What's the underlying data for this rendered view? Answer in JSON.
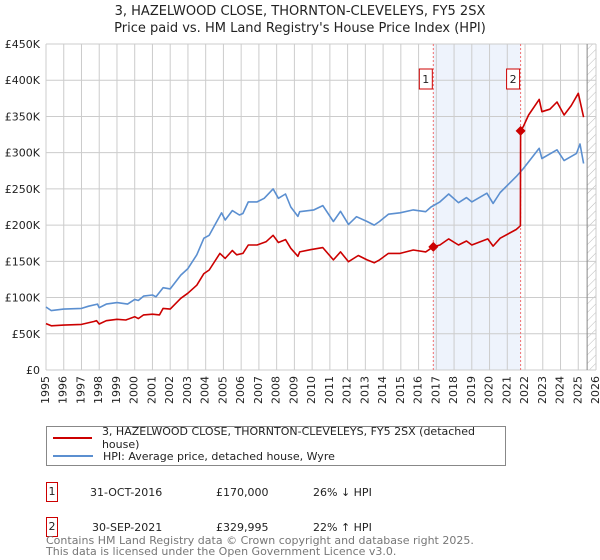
{
  "title_line1": "3, HAZELWOOD CLOSE, THORNTON-CLEVELEYS, FY5 2SX",
  "title_line2": "Price paid vs. HM Land Registry's House Price Index (HPI)",
  "chart_data": {
    "type": "line",
    "title": "3, HAZELWOOD CLOSE, THORNTON-CLEVELEYS, FY5 2SX — Price paid vs. HM Land Registry's House Price Index (HPI)",
    "xlim": [
      1995,
      2026
    ],
    "ylim": [
      0,
      450000
    ],
    "y_ticks": [
      {
        "v": 0,
        "label": "£0"
      },
      {
        "v": 50000,
        "label": "£50K"
      },
      {
        "v": 100000,
        "label": "£100K"
      },
      {
        "v": 150000,
        "label": "£150K"
      },
      {
        "v": 200000,
        "label": "£200K"
      },
      {
        "v": 250000,
        "label": "£250K"
      },
      {
        "v": 300000,
        "label": "£300K"
      },
      {
        "v": 350000,
        "label": "£350K"
      },
      {
        "v": 400000,
        "label": "£400K"
      },
      {
        "v": 450000,
        "label": "£450K"
      }
    ],
    "x_ticks": [
      "1995",
      "1996",
      "1997",
      "1998",
      "1999",
      "2000",
      "2001",
      "2002",
      "2003",
      "2004",
      "2005",
      "2006",
      "2007",
      "2008",
      "2009",
      "2010",
      "2011",
      "2012",
      "2013",
      "2014",
      "2015",
      "2016",
      "2017",
      "2018",
      "2019",
      "2020",
      "2021",
      "2022",
      "2023",
      "2024",
      "2025",
      "2026"
    ],
    "grid": true,
    "shaded_span": [
      2016.83,
      2021.75
    ],
    "hatched_from": 2025.5,
    "series": [
      {
        "name": "3, HAZELWOOD CLOSE, THORNTON-CLEVELEYS, FY5 2SX (detached house)",
        "color": "#cc0000",
        "points": [
          [
            1995,
            64
          ],
          [
            1995.3,
            61
          ],
          [
            1996,
            62
          ],
          [
            1997,
            63
          ],
          [
            1997.7,
            67
          ],
          [
            1997.85,
            68
          ],
          [
            1998,
            63.5
          ],
          [
            1998.4,
            68
          ],
          [
            1999,
            70
          ],
          [
            1999.5,
            69
          ],
          [
            2000,
            73.6
          ],
          [
            2000.2,
            71
          ],
          [
            2000.5,
            76
          ],
          [
            2001,
            77
          ],
          [
            2001.4,
            76
          ],
          [
            2001.6,
            85
          ],
          [
            2002,
            84
          ],
          [
            2002.6,
            99
          ],
          [
            2003,
            106
          ],
          [
            2003.5,
            117
          ],
          [
            2003.9,
            133
          ],
          [
            2004.2,
            138
          ],
          [
            2004.8,
            161
          ],
          [
            2005.1,
            154
          ],
          [
            2005.5,
            165
          ],
          [
            2005.75,
            159
          ],
          [
            2006.1,
            161
          ],
          [
            2006.4,
            172.5
          ],
          [
            2006.9,
            172.5
          ],
          [
            2007.4,
            177
          ],
          [
            2007.8,
            186
          ],
          [
            2008.1,
            176
          ],
          [
            2008.5,
            180
          ],
          [
            2008.8,
            168
          ],
          [
            2009.2,
            157
          ],
          [
            2009.3,
            163
          ],
          [
            2009.9,
            166
          ],
          [
            2010.6,
            169
          ],
          [
            2011.2,
            152
          ],
          [
            2011.6,
            163
          ],
          [
            2012.05,
            149.5
          ],
          [
            2012.6,
            158
          ],
          [
            2013.1,
            152
          ],
          [
            2013.5,
            148
          ],
          [
            2013.8,
            152
          ],
          [
            2014.3,
            161
          ],
          [
            2014.96,
            161
          ],
          [
            2015.7,
            165.6
          ],
          [
            2016.4,
            163
          ],
          [
            2016.83,
            170
          ],
          [
            2017.2,
            172.5
          ],
          [
            2017.7,
            181
          ],
          [
            2018.25,
            172.5
          ],
          [
            2018.7,
            178
          ],
          [
            2019.0,
            172.5
          ],
          [
            2019.9,
            181
          ],
          [
            2020.2,
            171
          ],
          [
            2020.6,
            182
          ],
          [
            2021.5,
            194
          ],
          [
            2021.74,
            199
          ],
          [
            2021.75,
            330
          ],
          [
            2021.9,
            336
          ],
          [
            2022.2,
            352
          ],
          [
            2022.8,
            373.5
          ],
          [
            2022.95,
            356.5
          ],
          [
            2023.4,
            360
          ],
          [
            2023.8,
            370
          ],
          [
            2024.2,
            352
          ],
          [
            2024.6,
            365
          ],
          [
            2025.0,
            382
          ],
          [
            2025.3,
            349
          ]
        ]
      },
      {
        "name": "HPI: Average price, detached house, Wyre",
        "color": "#5b8fd0",
        "points": [
          [
            1995,
            87
          ],
          [
            1995.3,
            82
          ],
          [
            1996,
            84
          ],
          [
            1997,
            85
          ],
          [
            1997.4,
            88
          ],
          [
            1997.9,
            91
          ],
          [
            1998,
            86
          ],
          [
            1998.4,
            91
          ],
          [
            1999,
            93
          ],
          [
            1999.6,
            91
          ],
          [
            2000,
            97.5
          ],
          [
            2000.2,
            96
          ],
          [
            2000.5,
            102
          ],
          [
            2001,
            103.5
          ],
          [
            2001.2,
            101
          ],
          [
            2001.6,
            113.6
          ],
          [
            2002,
            112
          ],
          [
            2002.6,
            131
          ],
          [
            2003,
            140
          ],
          [
            2003.5,
            159
          ],
          [
            2003.9,
            182
          ],
          [
            2004.2,
            186
          ],
          [
            2004.9,
            217
          ],
          [
            2005.1,
            207
          ],
          [
            2005.5,
            220
          ],
          [
            2005.9,
            214
          ],
          [
            2006.1,
            216
          ],
          [
            2006.4,
            232
          ],
          [
            2006.9,
            232
          ],
          [
            2007.3,
            237
          ],
          [
            2007.8,
            250
          ],
          [
            2008.1,
            237
          ],
          [
            2008.5,
            243
          ],
          [
            2008.8,
            225
          ],
          [
            2009.2,
            212
          ],
          [
            2009.3,
            218.5
          ],
          [
            2010.1,
            221
          ],
          [
            2010.6,
            227
          ],
          [
            2011.2,
            205
          ],
          [
            2011.6,
            219
          ],
          [
            2012.05,
            201
          ],
          [
            2012.5,
            211.6
          ],
          [
            2013.1,
            205
          ],
          [
            2013.5,
            200
          ],
          [
            2013.8,
            205
          ],
          [
            2014.3,
            215
          ],
          [
            2014.96,
            217
          ],
          [
            2015.7,
            221
          ],
          [
            2016.4,
            218.5
          ],
          [
            2016.7,
            225
          ],
          [
            2017.2,
            232
          ],
          [
            2017.7,
            243
          ],
          [
            2018.25,
            231
          ],
          [
            2018.7,
            238
          ],
          [
            2019.0,
            232
          ],
          [
            2019.85,
            244
          ],
          [
            2020.2,
            230
          ],
          [
            2020.6,
            245
          ],
          [
            2021.5,
            267
          ],
          [
            2021.9,
            278
          ],
          [
            2022.8,
            306
          ],
          [
            2022.95,
            292
          ],
          [
            2023.8,
            304
          ],
          [
            2024.2,
            289
          ],
          [
            2024.9,
            299
          ],
          [
            2025.1,
            312
          ],
          [
            2025.3,
            285
          ]
        ]
      }
    ],
    "y_unit_multiplier": 1000,
    "sales": [
      {
        "id": "1",
        "year": 2016.83,
        "price": 170000
      },
      {
        "id": "2",
        "year": 2021.75,
        "price": 329995
      }
    ]
  },
  "legend": {
    "property": "3, HAZELWOOD CLOSE, THORNTON-CLEVELEYS, FY5 2SX (detached house)",
    "hpi": "HPI: Average price, detached house, Wyre"
  },
  "transactions": [
    {
      "id": "1",
      "date": "31-OCT-2016",
      "price": "£170,000",
      "hpi": "26% ↓ HPI"
    },
    {
      "id": "2",
      "date": "30-SEP-2021",
      "price": "£329,995",
      "hpi": "22% ↑ HPI"
    }
  ],
  "footer": {
    "line1": "Contains HM Land Registry data © Crown copyright and database right 2025.",
    "line2": "This data is licensed under the Open Government Licence v3.0."
  }
}
